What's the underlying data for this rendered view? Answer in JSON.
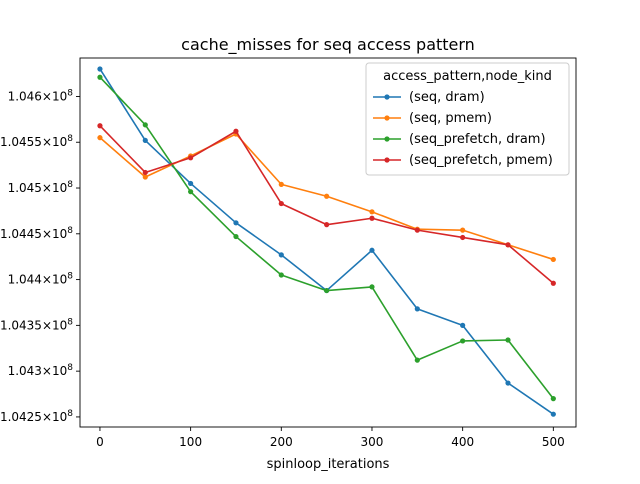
{
  "chart_data": {
    "type": "line",
    "title": "cache_misses for seq access pattern",
    "xlabel": "spinloop_iterations",
    "ylabel": "",
    "x": [
      0,
      50,
      100,
      150,
      200,
      250,
      300,
      350,
      400,
      450,
      500
    ],
    "xlim": [
      -22,
      525
    ],
    "ylim": [
      1.04239,
      1.04642
    ],
    "xticks": [
      {
        "value": 0,
        "label": "0"
      },
      {
        "value": 100,
        "label": "100"
      },
      {
        "value": 200,
        "label": "200"
      },
      {
        "value": 300,
        "label": "300"
      },
      {
        "value": 400,
        "label": "400"
      },
      {
        "value": 500,
        "label": "500"
      }
    ],
    "yticks": [
      {
        "value": 1.0425,
        "mantissa": "1.0425",
        "exponent": "8"
      },
      {
        "value": 1.043,
        "mantissa": "1.043",
        "exponent": "8"
      },
      {
        "value": 1.0435,
        "mantissa": "1.0435",
        "exponent": "8"
      },
      {
        "value": 1.044,
        "mantissa": "1.044",
        "exponent": "8"
      },
      {
        "value": 1.0445,
        "mantissa": "1.0445",
        "exponent": "8"
      },
      {
        "value": 1.045,
        "mantissa": "1.045",
        "exponent": "8"
      },
      {
        "value": 1.0455,
        "mantissa": "1.0455",
        "exponent": "8"
      },
      {
        "value": 1.046,
        "mantissa": "1.046",
        "exponent": "8"
      }
    ],
    "tick_suffix": "×10",
    "grid": false,
    "legend": {
      "title": "access_pattern,node_kind",
      "placement": "top-right"
    },
    "series": [
      {
        "name": "(seq, dram)",
        "color": "#1f77b4",
        "values": [
          1.0463,
          1.04552,
          1.04505,
          1.04462,
          1.04427,
          1.04388,
          1.04432,
          1.04368,
          1.0435,
          1.04287,
          1.04253
        ]
      },
      {
        "name": "(seq, pmem)",
        "color": "#ff7f0e",
        "values": [
          1.04555,
          1.04512,
          1.04535,
          1.04559,
          1.04504,
          1.04491,
          1.04474,
          1.04455,
          1.04454,
          1.04438,
          1.04422
        ]
      },
      {
        "name": "(seq_prefetch, dram)",
        "color": "#2ca02c",
        "values": [
          1.04621,
          1.04569,
          1.04496,
          1.04447,
          1.04405,
          1.04388,
          1.04392,
          1.04312,
          1.04333,
          1.04334,
          1.0427
        ]
      },
      {
        "name": "(seq_prefetch, pmem)",
        "color": "#d62728",
        "values": [
          1.04568,
          1.04517,
          1.04533,
          1.04562,
          1.04483,
          1.0446,
          1.04467,
          1.04454,
          1.04446,
          1.04438,
          1.04396
        ]
      }
    ]
  }
}
